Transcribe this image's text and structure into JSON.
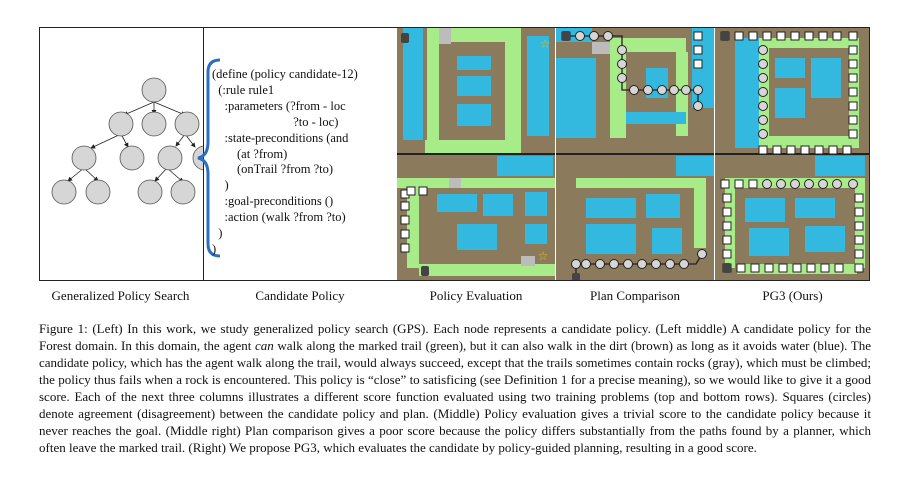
{
  "panels": {
    "gps_label": "Generalized Policy Search",
    "candidate_label": "Candidate Policy",
    "eval_label": "Policy Evaluation",
    "plan_label": "Plan Comparison",
    "pg3_label": "PG3 (Ours)"
  },
  "policy": {
    "lines": [
      "(define (policy candidate-12)",
      "  (:rule rule1",
      "    :parameters (?from - loc",
      "                          ?to - loc)",
      "    :state-preconditions (and",
      "        (at ?from)",
      "        (onTrail ?from ?to)",
      "    )",
      "    :goal-preconditions ()",
      "    :action (walk ?from ?to)",
      "  )",
      ")"
    ]
  },
  "colors": {
    "dirt": "#8b7a5c",
    "trail": "#a8ec8a",
    "water": "#33b9e0",
    "rock": "#bcbcbc",
    "node": "#d6d6d6"
  },
  "caption": {
    "p1": "Figure 1: (Left) In this work, we study generalized policy search (GPS). Each node represents a candidate policy. (Left middle) A candidate policy for the Forest domain. In this domain, the agent ",
    "can": "can",
    "p2": " walk along the marked trail (green), but it can also walk in the dirt (brown) as long as it avoids water (blue). The candidate policy, which has the agent walk along the trail, would always succeed, except that the trails sometimes contain rocks (gray), which must be climbed; the policy thus fails when a rock is encountered. This policy is “close” to satisficing (see Definition 1 for a precise meaning), so we would like to give it a good score. Each of the next three columns illustrates a different score function evaluated using two training problems (top and bottom rows). Squares (circles) denote agreement (disagreement) between the candidate policy and plan. (Middle) Policy evaluation gives a trivial score to the candidate policy because it never reaches the goal. (Middle right) Plan comparison gives a poor score because the policy differs substantially from the paths found by a planner, which often leave the marked trail. (Right) We propose PG3, which evaluates the candidate by policy-guided planning, resulting in a good score."
  }
}
